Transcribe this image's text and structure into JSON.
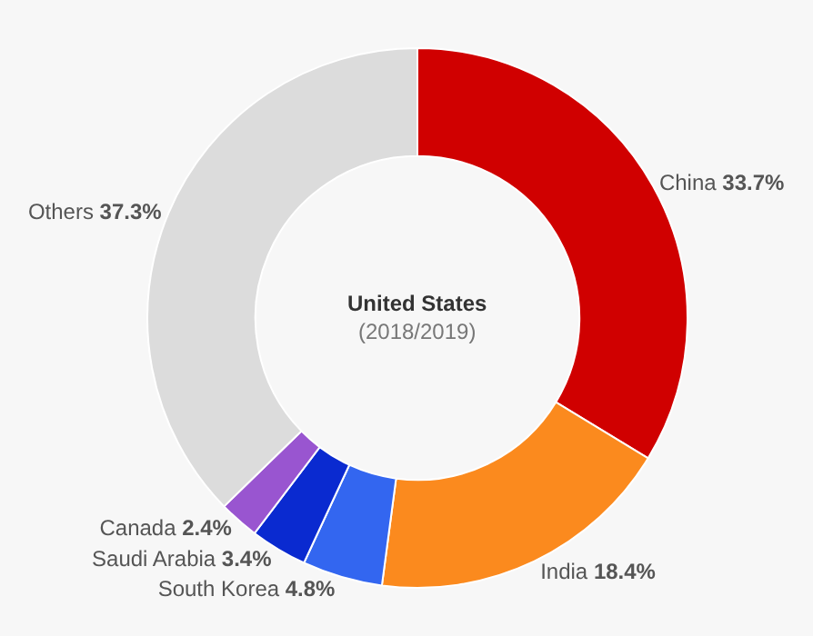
{
  "chart_data": {
    "type": "donut",
    "title": "United States",
    "subtitle": "(2018/2019)",
    "categories": [
      "China",
      "India",
      "South Korea",
      "Saudi Arabia",
      "Canada",
      "Others"
    ],
    "values": [
      33.7,
      18.4,
      4.8,
      3.4,
      2.4,
      37.3
    ],
    "value_labels": [
      "33.7%",
      "18.4%",
      "4.8%",
      "3.4%",
      "2.4%",
      "37.3%"
    ],
    "colors": [
      "#d00000",
      "#fb8a1e",
      "#3366f0",
      "#0a2ad0",
      "#9955d0",
      "#dcdcdc"
    ],
    "legend": false
  }
}
